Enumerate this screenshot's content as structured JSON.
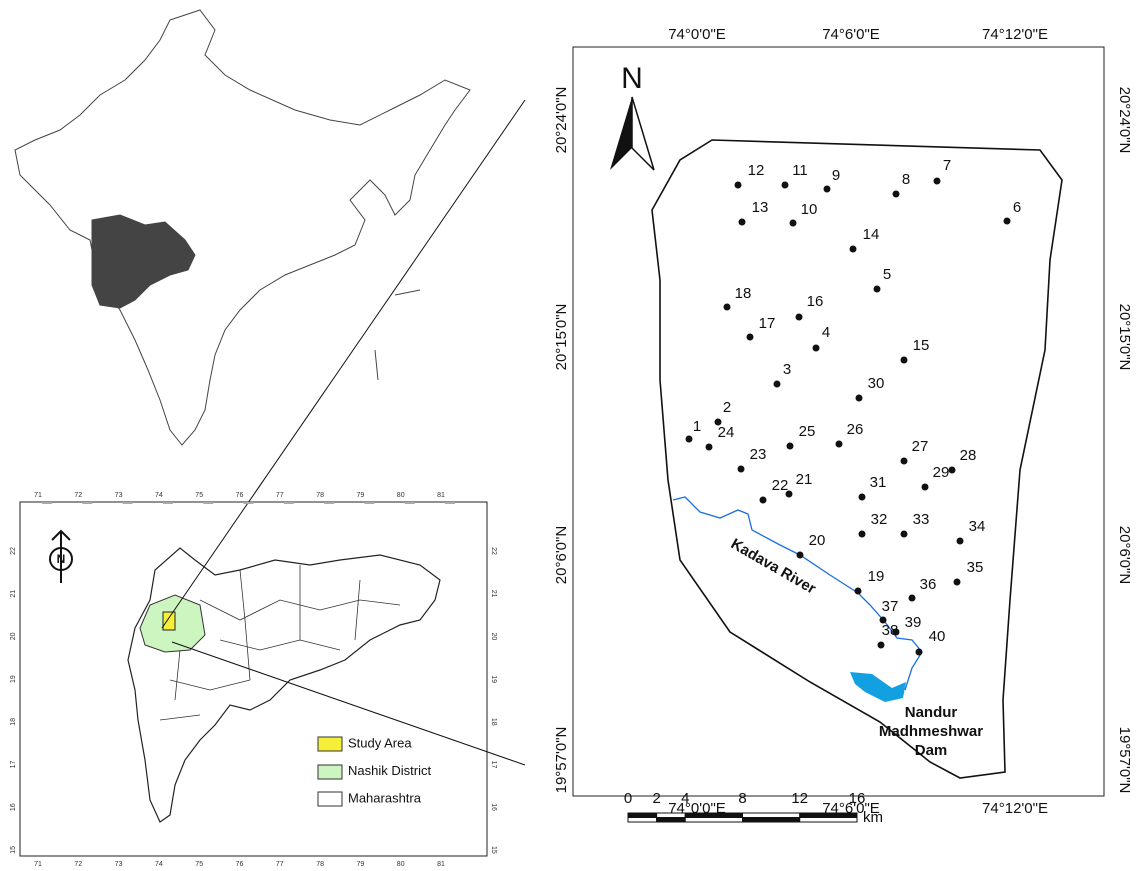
{
  "study_map": {
    "lon_labels": [
      "74°0'0\"E",
      "74°6'0\"E",
      "74°12'0\"E"
    ],
    "lat_labels": [
      "20°24'0\"N",
      "20°15'0\"N",
      "20°6'0\"N",
      "19°57'0\"N"
    ],
    "north": "N",
    "points": [
      "1",
      "2",
      "3",
      "4",
      "5",
      "6",
      "7",
      "8",
      "9",
      "10",
      "11",
      "12",
      "13",
      "14",
      "15",
      "16",
      "17",
      "18",
      "19",
      "20",
      "21",
      "22",
      "23",
      "24",
      "25",
      "26",
      "27",
      "28",
      "29",
      "30",
      "31",
      "32",
      "33",
      "34",
      "35",
      "36",
      "37",
      "38",
      "39",
      "40"
    ],
    "river": "Kadava River",
    "dam": [
      "Nandur",
      "Madhmeshwar",
      "Dam"
    ],
    "scale": {
      "ticks": [
        0,
        2,
        4,
        8,
        12,
        16
      ],
      "unit": "km"
    }
  },
  "state_map": {
    "north": "N",
    "lon_ticks": [
      71,
      72,
      73,
      74,
      75,
      76,
      77,
      78,
      79,
      80,
      81
    ],
    "lat_ticks": [
      22,
      21,
      20,
      19,
      18,
      17,
      16,
      15
    ],
    "legend": [
      "Study Area",
      "Nashik District",
      "Maharashtra"
    ]
  }
}
